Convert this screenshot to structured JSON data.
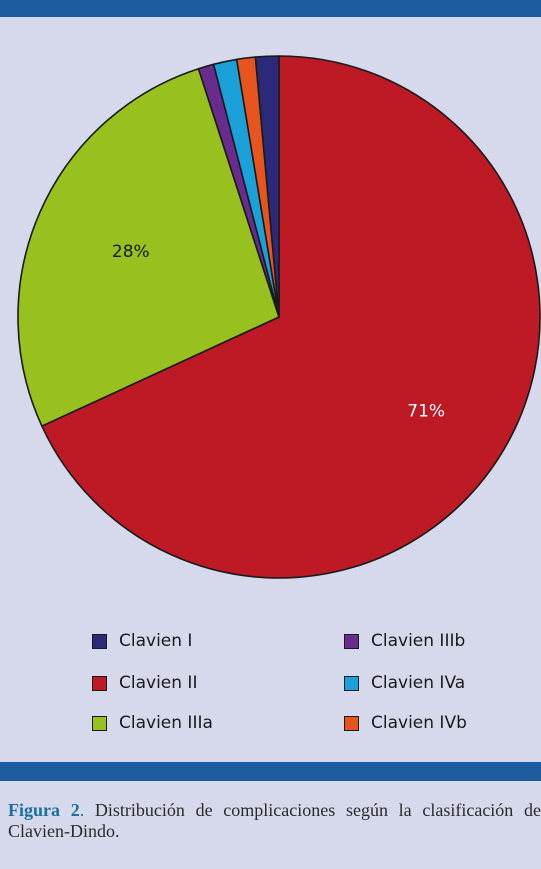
{
  "chart_data": {
    "type": "pie",
    "categories": [
      "Clavien I",
      "Clavien II",
      "Clavien IIIa",
      "Clavien IIIb",
      "Clavien IVa",
      "Clavien IVb"
    ],
    "values": [
      1.5,
      71,
      28,
      1,
      1.5,
      1.2
    ],
    "colors": [
      "#2b2a7a",
      "#be1a26",
      "#98c11f",
      "#6a2b8e",
      "#1aa1d9",
      "#e8541e"
    ],
    "data_labels": [
      "",
      "71%",
      "28%",
      "",
      "",
      ""
    ],
    "label_colors": [
      "#1a1a1a",
      "#ffffff",
      "#1a1a1a",
      "#1a1a1a",
      "#1a1a1a",
      "#1a1a1a"
    ],
    "start": "12 o'clock",
    "direction": "clockwise",
    "legend_placement": "bottom",
    "title": ""
  },
  "caption": {
    "lead": "Figura 2",
    "sep": ".",
    "text": " Distribución de complicaciones según la clasificación de Clavien-Dindo."
  }
}
